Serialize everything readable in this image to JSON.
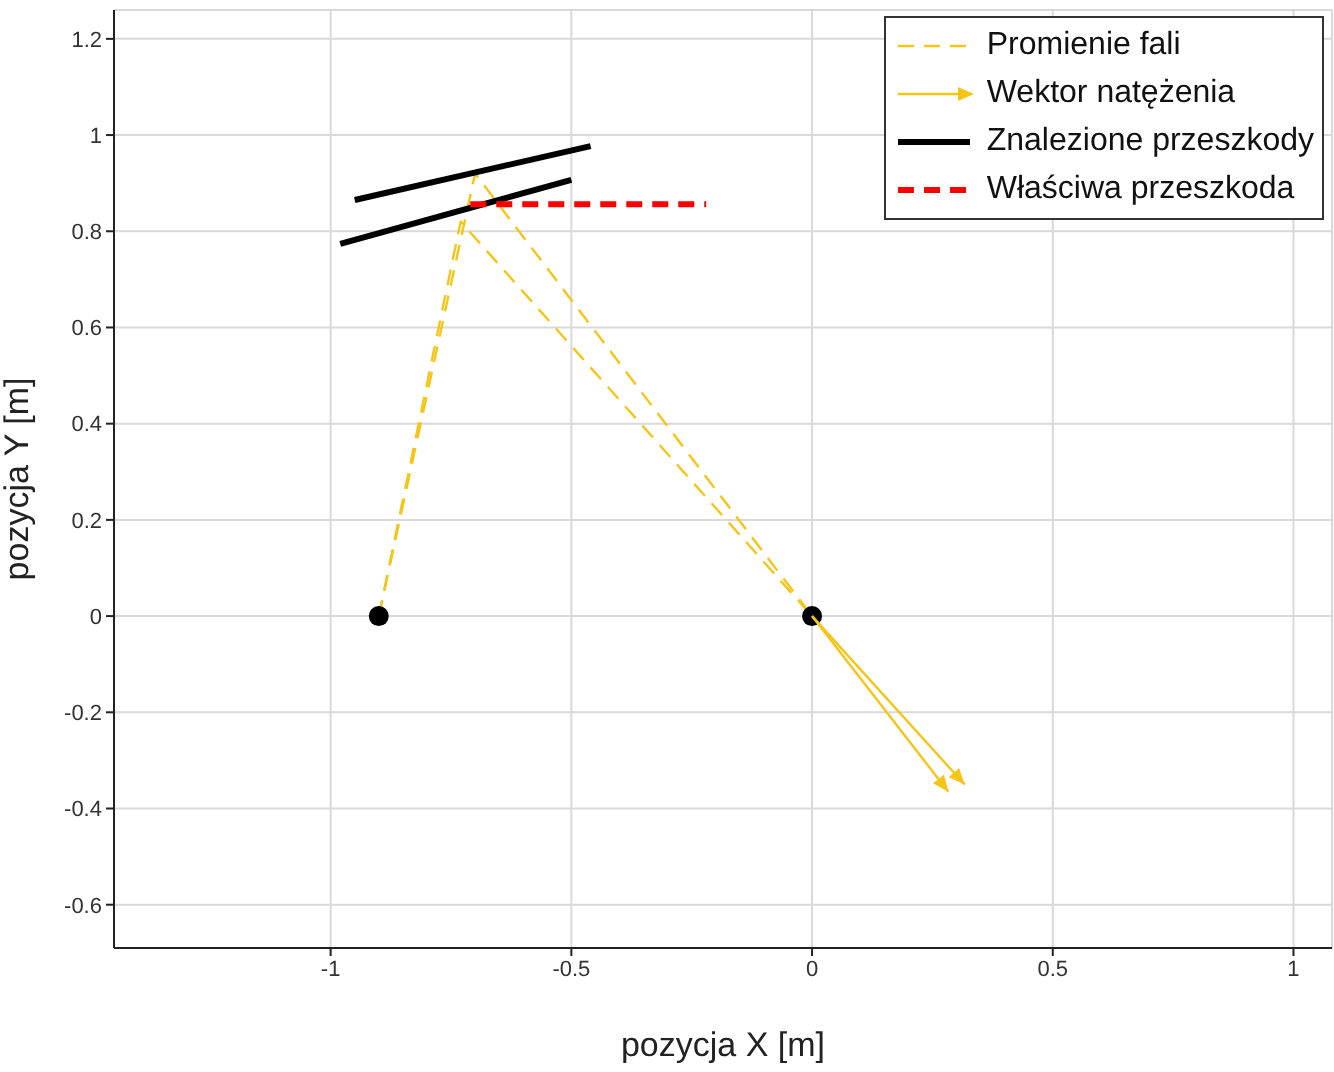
{
  "chart_data": {
    "type": "line",
    "xlabel": "pozycja X [m]",
    "ylabel": "pozycja Y [m]",
    "xlim": [
      -1.45,
      1.08
    ],
    "ylim": [
      -0.69,
      1.26
    ],
    "xticks": [
      -1,
      -0.5,
      0,
      0.5,
      1
    ],
    "yticks": [
      -0.6,
      -0.4,
      -0.2,
      0,
      0.2,
      0.4,
      0.6,
      0.8,
      1,
      1.2
    ],
    "grid": true,
    "legend": "top right",
    "series": [
      {
        "name": "Promienie fali",
        "type": "line",
        "line_style": "dashed",
        "color": "#f5c518",
        "x": [
          -0.9,
          -0.7,
          0
        ],
        "values": [
          0,
          0.92,
          0
        ]
      },
      {
        "type": "line",
        "line_style": "dashed",
        "color": "#f5c518",
        "x": [
          -0.9,
          -0.73,
          0
        ],
        "values": [
          0,
          0.82,
          0
        ]
      },
      {
        "name": "Wektor natężenia",
        "type": "line",
        "line_style": "solid",
        "color": "#f5c518",
        "x": [
          0,
          0.283
        ],
        "values": [
          0,
          -0.365
        ]
      },
      {
        "type": "line",
        "line_style": "solid",
        "color": "#f5c518",
        "x": [
          0,
          0.317
        ],
        "values": [
          0,
          -0.35
        ]
      },
      {
        "name": "Znalezione przeszkody",
        "type": "line",
        "line_style": "solid",
        "color": "#000000",
        "x": [
          -0.95,
          -0.46
        ],
        "values": [
          0.865,
          0.977
        ]
      },
      {
        "type": "line",
        "line_style": "solid",
        "color": "#000000",
        "x": [
          -0.98,
          -0.5
        ],
        "values": [
          0.774,
          0.907
        ]
      },
      {
        "name": "Właściwa przeszkoda",
        "line_style": "dashed",
        "color": "#ff0000",
        "x": [
          -0.71,
          -0.22
        ],
        "values": [
          0.856,
          0.856
        ]
      },
      {
        "type": "scatter",
        "marker": "circle",
        "color": "#000000",
        "x": [
          -0.9,
          0
        ],
        "values": [
          0,
          0
        ]
      }
    ]
  }
}
